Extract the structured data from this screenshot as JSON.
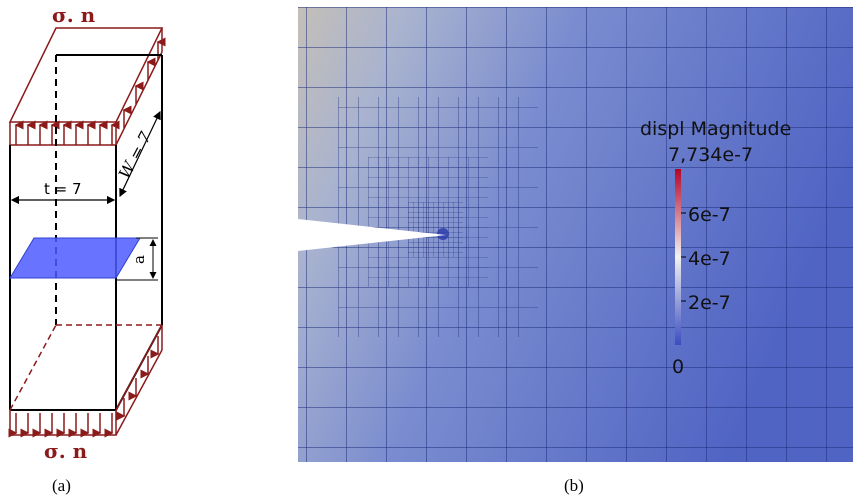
{
  "panel_a": {
    "load_top": "σ. n",
    "load_bottom": "σ. n",
    "thickness_label": "t = 7",
    "width_label": "W = 7",
    "crack_label": "a",
    "caption": "(a)",
    "colors": {
      "load": "#8b1a1a",
      "frame": "#000000",
      "crack": "#4d5cff"
    }
  },
  "panel_b": {
    "caption": "(b)",
    "legend": {
      "title": "displ Magnitude",
      "max_label": "7,734e-7",
      "ticks": [
        "6e-7",
        "4e-7",
        "2e-7"
      ],
      "min_label": "0"
    },
    "colors": {
      "low": "#3b4cc0",
      "mid": "#f2f2f2",
      "high": "#b40426",
      "mesh": "#1a2a7a"
    }
  }
}
